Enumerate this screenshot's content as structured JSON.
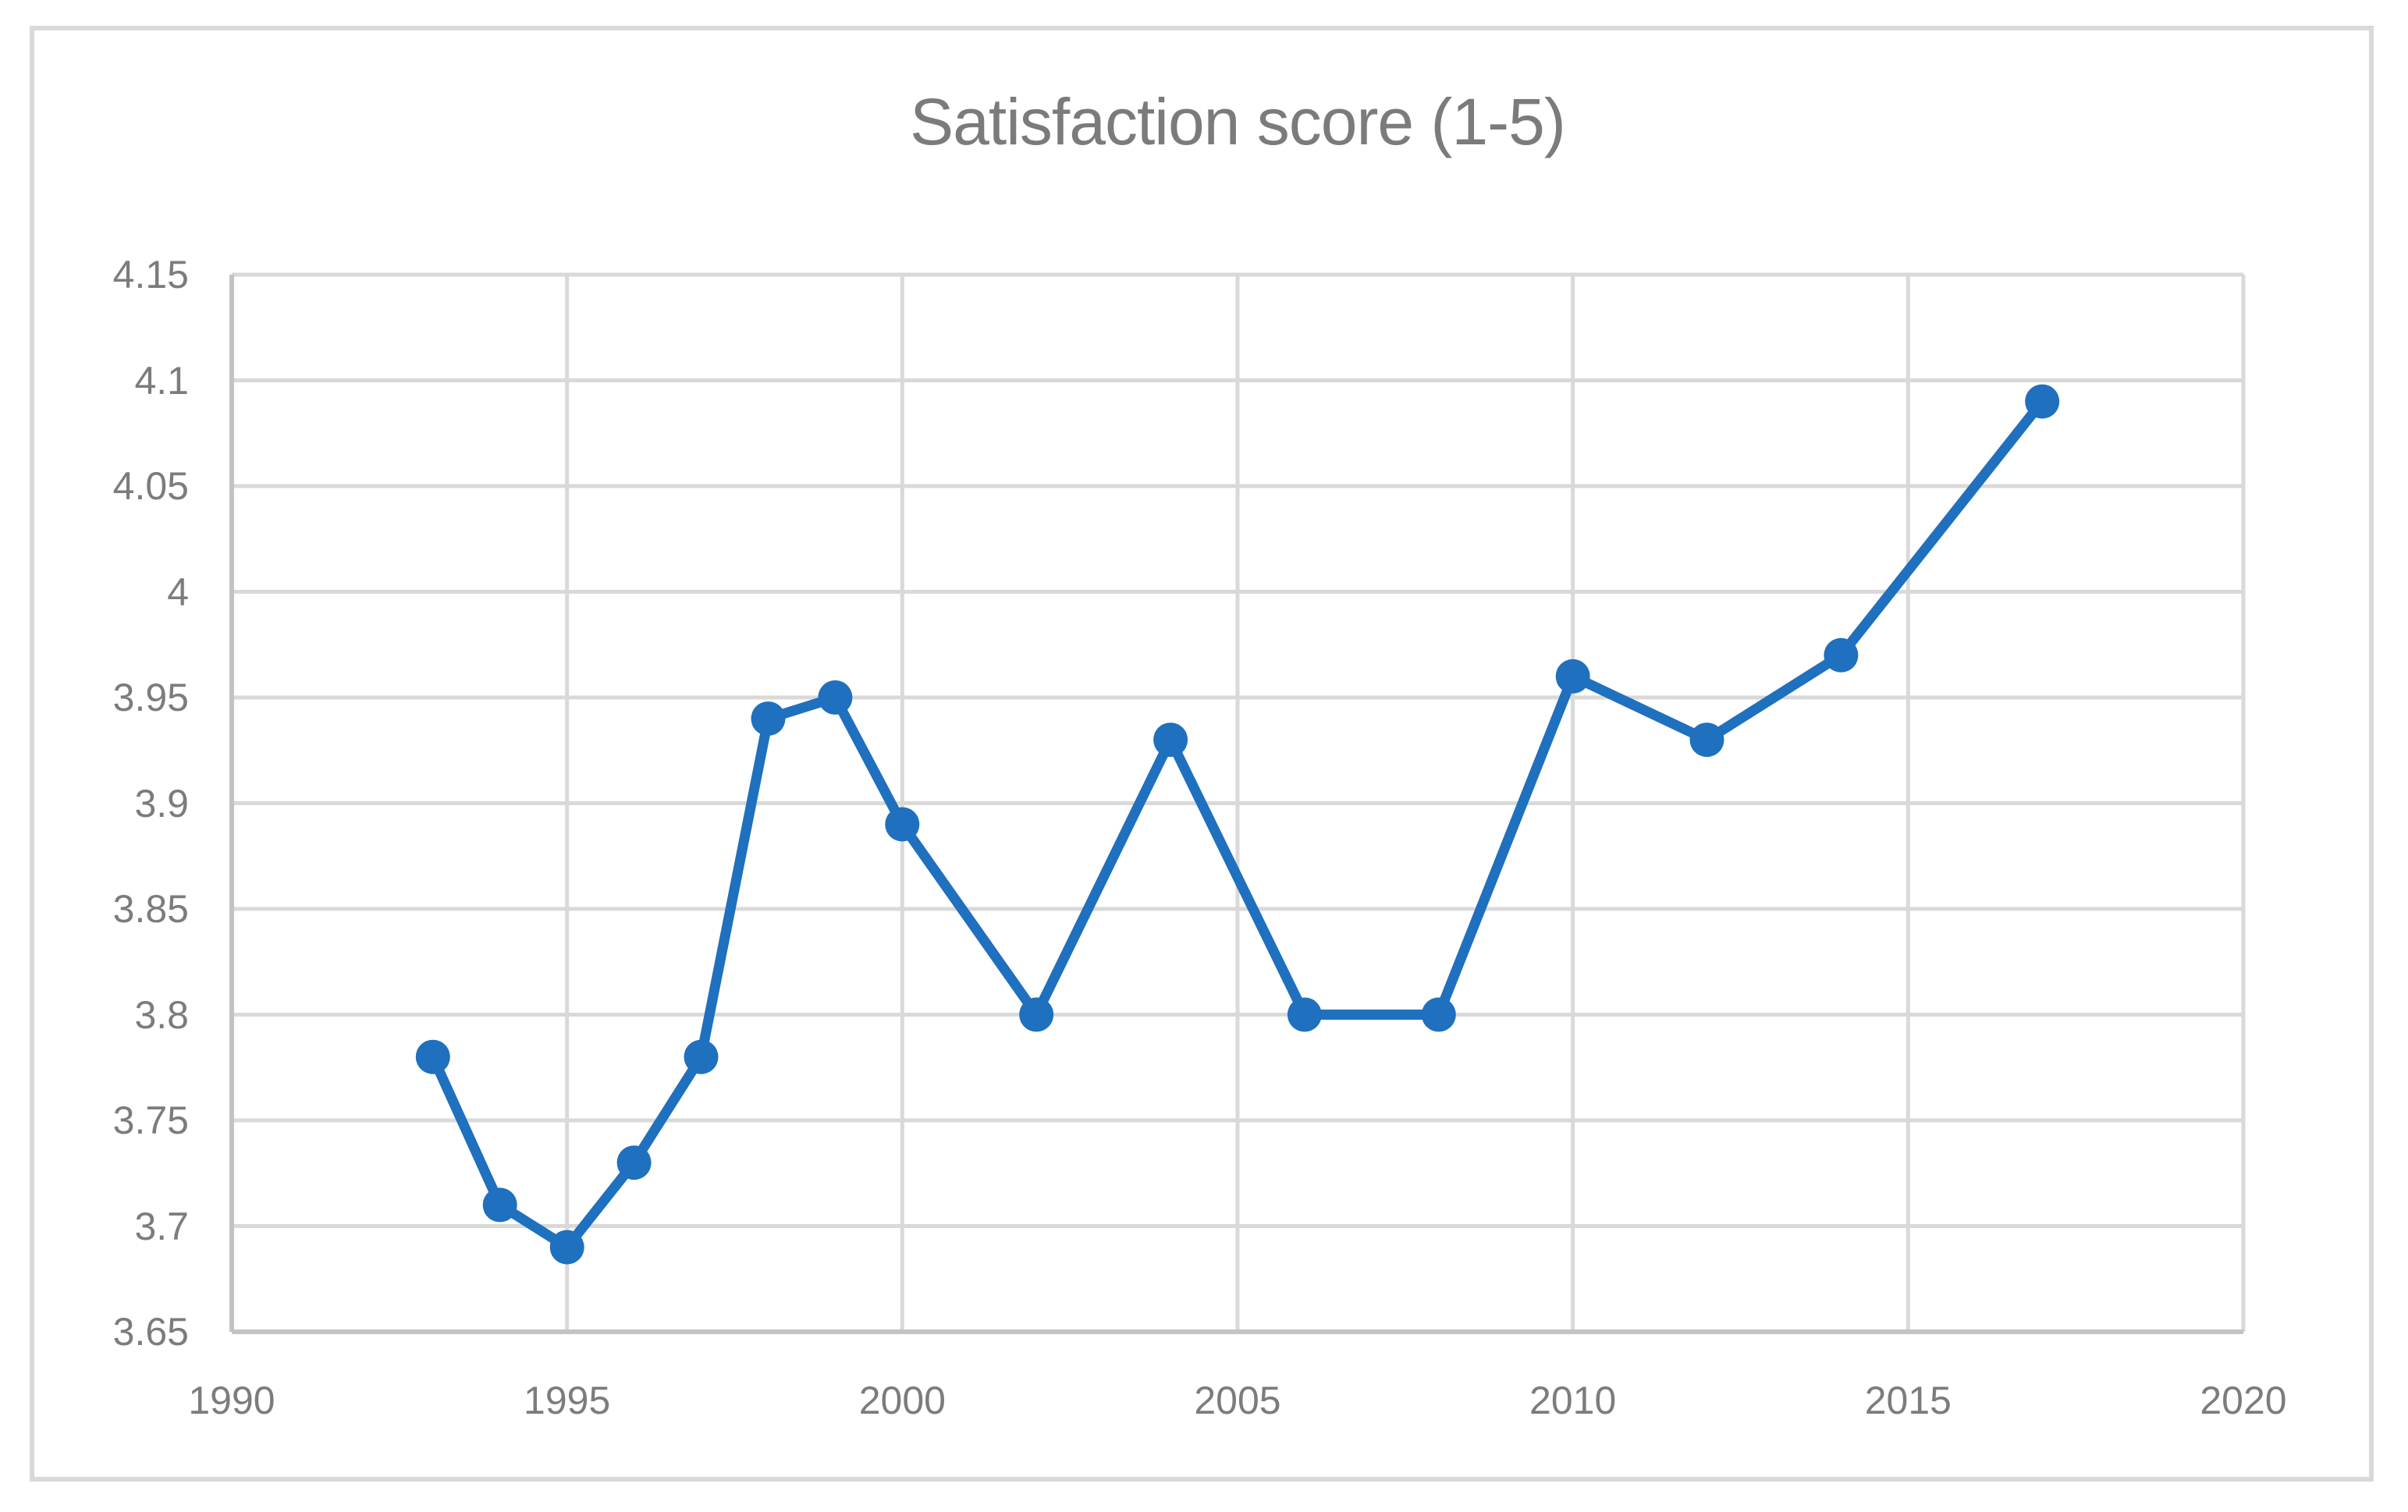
{
  "figure": {
    "title": "Satisfaction score (1-5)"
  },
  "colors": {
    "series_blue": "#1f70be",
    "gridline_gray": "#d9d9d9",
    "axis_gray": "#c3c3c3",
    "label_gray": "#7c7c7c",
    "title_gray": "#7b7b7b",
    "frame_border_gray": "#d9d9d9"
  },
  "chart_data": {
    "type": "line",
    "title": "Satisfaction score (1-5)",
    "xlabel": "",
    "ylabel": "",
    "xlim": [
      1990,
      2020
    ],
    "ylim": [
      3.65,
      4.15
    ],
    "grid": true,
    "legend": "none",
    "marker": "circle",
    "x": [
      1993,
      1994,
      1995,
      1996,
      1997,
      1998,
      1999,
      2000,
      2002,
      2004,
      2006,
      2008,
      2010,
      2012,
      2014,
      2017
    ],
    "values": [
      3.78,
      3.71,
      3.69,
      3.73,
      3.78,
      3.94,
      3.95,
      3.89,
      3.8,
      3.93,
      3.8,
      3.8,
      3.96,
      3.93,
      3.97,
      4.09
    ],
    "x_tick_values": [
      1990,
      1995,
      2000,
      2005,
      2010,
      2015,
      2020
    ],
    "x_tick_labels": [
      "1990",
      "1995",
      "2000",
      "2005",
      "2010",
      "2015",
      "2020"
    ],
    "y_tick_values": [
      4.15,
      4.1,
      4.05,
      4.0,
      3.95,
      3.9,
      3.85,
      3.8,
      3.75,
      3.7,
      3.65
    ],
    "y_tick_labels": [
      "4.15",
      "4.1",
      "4.05",
      "4",
      "3.95",
      "3.9",
      "3.85",
      "3.8",
      "3.75",
      "3.7",
      "3.65"
    ]
  }
}
